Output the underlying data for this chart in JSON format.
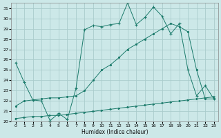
{
  "xlabel": "Humidex (Indice chaleur)",
  "bg_color": "#cce8e8",
  "grid_color": "#aacccc",
  "line_color": "#1a7a6a",
  "xlim": [
    -0.5,
    23.5
  ],
  "ylim": [
    20,
    31.5
  ],
  "xticks": [
    0,
    1,
    2,
    3,
    4,
    5,
    6,
    7,
    8,
    9,
    10,
    11,
    12,
    13,
    14,
    15,
    16,
    17,
    18,
    19,
    20,
    21,
    22,
    23
  ],
  "yticks": [
    20,
    21,
    22,
    23,
    24,
    25,
    26,
    27,
    28,
    29,
    30,
    31
  ],
  "series1_x": [
    0,
    1,
    2,
    3,
    4,
    5,
    6,
    7,
    8,
    9,
    10,
    11,
    12,
    13,
    14,
    15,
    16,
    17,
    18,
    19,
    20,
    21,
    22,
    23
  ],
  "series1_y": [
    20.3,
    20.4,
    20.5,
    20.5,
    20.6,
    20.6,
    20.7,
    20.8,
    20.9,
    21.0,
    21.1,
    21.2,
    21.3,
    21.4,
    21.5,
    21.6,
    21.7,
    21.8,
    21.9,
    22.0,
    22.1,
    22.2,
    22.3,
    22.4
  ],
  "series2_x": [
    0,
    1,
    2,
    3,
    4,
    5,
    6,
    7,
    8,
    9,
    10,
    11,
    12,
    13,
    14,
    15,
    16,
    17,
    18,
    19,
    20,
    21,
    22,
    23
  ],
  "series2_y": [
    25.7,
    23.8,
    22.1,
    22.0,
    20.1,
    20.8,
    20.2,
    23.2,
    28.9,
    29.3,
    29.2,
    29.4,
    29.5,
    31.5,
    29.4,
    30.1,
    31.1,
    30.2,
    28.5,
    29.5,
    25.0,
    22.5,
    23.5,
    22.2
  ],
  "series3_x": [
    0,
    1,
    2,
    3,
    4,
    5,
    6,
    7,
    8,
    9,
    10,
    11,
    12,
    13,
    14,
    15,
    16,
    17,
    18,
    19,
    20,
    21,
    22,
    23
  ],
  "series3_y": [
    21.5,
    22.0,
    22.1,
    22.2,
    22.3,
    22.3,
    22.4,
    22.5,
    23.0,
    24.0,
    25.0,
    25.5,
    26.2,
    27.0,
    27.5,
    28.0,
    28.5,
    29.0,
    29.5,
    29.2,
    28.7,
    25.0,
    22.2,
    22.2
  ]
}
